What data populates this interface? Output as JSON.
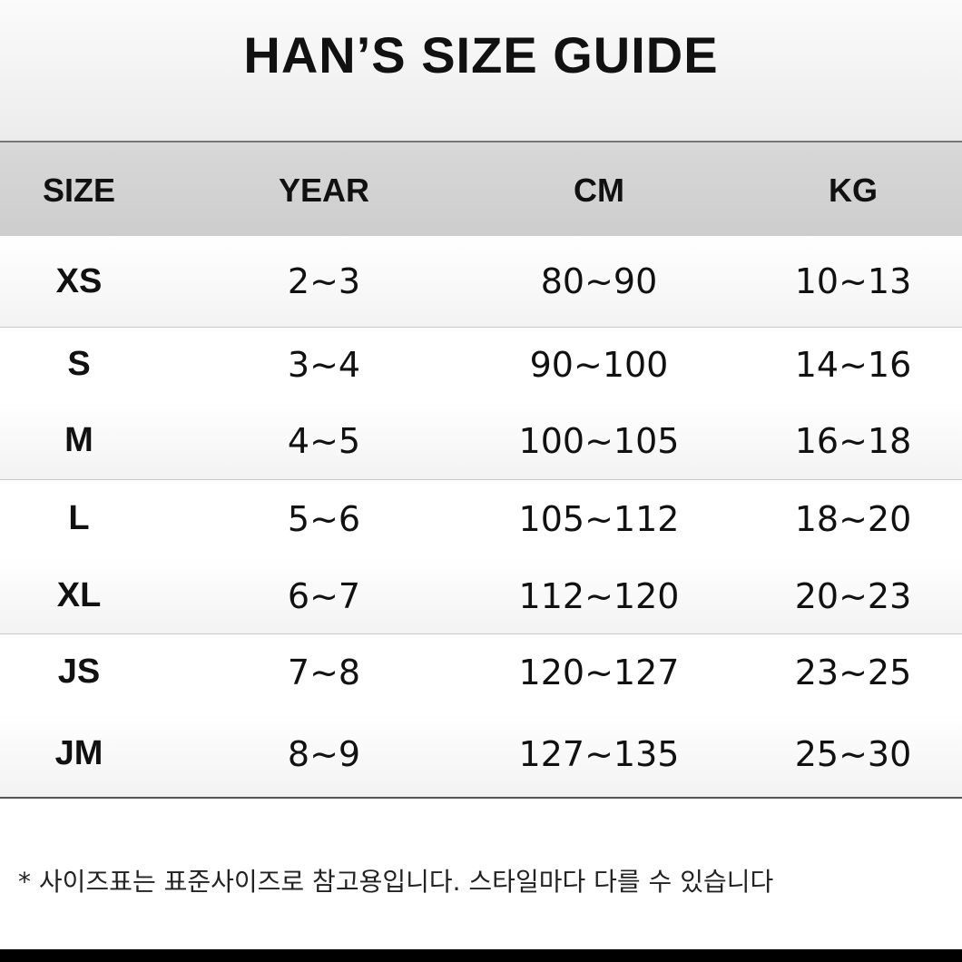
{
  "header": {
    "title": "HAN’S SIZE GUIDE"
  },
  "table": {
    "columns": [
      "SIZE",
      "YEAR",
      "CM",
      "KG"
    ],
    "rows": [
      [
        "XS",
        "2~3",
        "80~90",
        "10~13"
      ],
      [
        "S",
        "3~4",
        "90~100",
        "14~16"
      ],
      [
        "M",
        "4~5",
        "100~105",
        "16~18"
      ],
      [
        "L",
        "5~6",
        "105~112",
        "18~20"
      ],
      [
        "XL",
        "6~7",
        "112~120",
        "20~23"
      ],
      [
        "JS",
        "7~8",
        "120~127",
        "23~25"
      ],
      [
        "JM",
        "8~9",
        "127~135",
        "25~30"
      ]
    ]
  },
  "footnote": "*  사이즈표는 표준사이즈로 참고용입니다. 스타일마다 다를 수 있습니다"
}
